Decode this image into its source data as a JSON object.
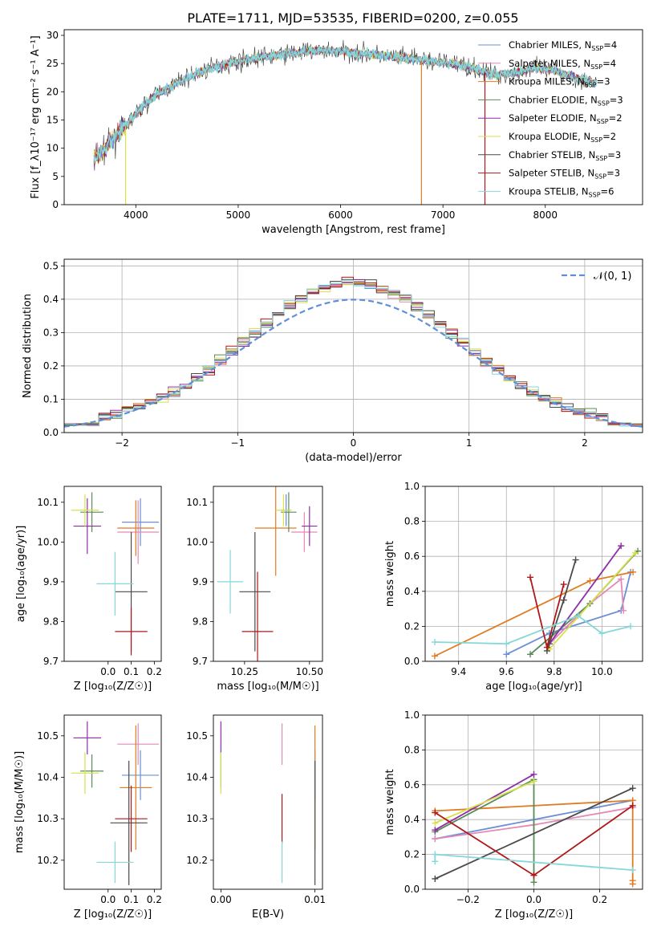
{
  "figure": {
    "title": "PLATE=1711, MJD=53535, FIBERID=0200, z=0.055"
  },
  "colors": {
    "Chabrier MILES": "#6a8fd6",
    "Salpeter MILES": "#e488b6",
    "Kroupa MILES": "#e07b22",
    "Chabrier ELODIE": "#5a8a5a",
    "Salpeter ELODIE": "#8e2ea6",
    "Kroupa ELODIE": "#d7e04a",
    "Chabrier STELIB": "#4a4a4a",
    "Salpeter STELIB": "#b01818",
    "Kroupa STELIB": "#86d8d8"
  },
  "chart_data": [
    {
      "id": "spectrum",
      "type": "line",
      "xlabel": "wavelength [Angstrom, rest frame]",
      "ylabel": "Flux [f_λ10⁻¹⁷ erg cm⁻² s⁻¹ A⁻¹]",
      "xlim": [
        3300,
        8950
      ],
      "ylim": [
        0,
        31
      ],
      "xticks": [
        4000,
        5000,
        6000,
        7000,
        8000
      ],
      "yticks": [
        0,
        5,
        10,
        15,
        20,
        25,
        30
      ],
      "grid": false,
      "legend_position": "right",
      "legend": [
        {
          "name": "Chabrier MILES",
          "nssp": "4"
        },
        {
          "name": "Salpeter MILES",
          "nssp": "4"
        },
        {
          "name": "Kroupa MILES",
          "nssp": "3"
        },
        {
          "name": "Chabrier ELODIE",
          "nssp": "3"
        },
        {
          "name": "Salpeter ELODIE",
          "nssp": "2"
        },
        {
          "name": "Kroupa ELODIE",
          "nssp": "2"
        },
        {
          "name": "Chabrier STELIB",
          "nssp": "3"
        },
        {
          "name": "Salpeter STELIB",
          "nssp": "3"
        },
        {
          "name": "Kroupa STELIB",
          "nssp": "6"
        }
      ],
      "continuum": {
        "x": [
          3590,
          3700,
          3800,
          3900,
          4000,
          4100,
          4200,
          4300,
          4400,
          4500,
          4700,
          4900,
          5100,
          5300,
          5500,
          5700,
          5900,
          6100,
          6300,
          6500,
          6700,
          6900,
          7100,
          7300,
          7500,
          7700,
          7900,
          8100,
          8300,
          8500
        ],
        "y": [
          8,
          10,
          12,
          14,
          16,
          18,
          19.5,
          20.5,
          21.5,
          22.5,
          24,
          25,
          25.8,
          26.3,
          26.8,
          27.2,
          27.3,
          27.0,
          26.6,
          26.2,
          25.8,
          25.4,
          25.0,
          24.2,
          23.0,
          23.4,
          24.2,
          23.6,
          22.5,
          21.5
        ]
      },
      "spikes": [
        {
          "x": 3900,
          "y": 0
        },
        {
          "x": 6790,
          "y": 0
        },
        {
          "x": 7410,
          "y": 0
        }
      ]
    },
    {
      "id": "residuals",
      "type": "bar",
      "xlabel": "(data-model)/error",
      "ylabel": "Normed distribution",
      "xlim": [
        -2.5,
        2.5
      ],
      "ylim": [
        0,
        0.52
      ],
      "xticks": [
        -2,
        -1,
        0,
        1,
        2
      ],
      "yticks": [
        0.0,
        0.1,
        0.2,
        0.3,
        0.4,
        0.5
      ],
      "grid": true,
      "legend_position": "top-right",
      "legend": [
        {
          "name": "𝒩(0, 1)"
        }
      ],
      "bin_edges_range": [
        -2.5,
        2.5
      ],
      "bins": 50,
      "histogram_peak": 0.43
    },
    {
      "id": "age-vs-z",
      "type": "scatter",
      "xlabel": "Z [log₁₀(Z/Z☉)]",
      "ylabel": "age  [log₁₀(age/yr)]",
      "xlim": [
        -0.19,
        0.23
      ],
      "ylim": [
        9.7,
        10.14
      ],
      "xticks": [
        0.0,
        0.1,
        0.2
      ],
      "xticklabels": [
        "0.0",
        "0.1",
        "0.2"
      ],
      "yticks": [
        9.7,
        9.8,
        9.9,
        10.0,
        10.1
      ],
      "grid": false,
      "points": [
        {
          "series": "Chabrier MILES",
          "x": 0.14,
          "y": 10.05,
          "xerr": 0.08,
          "yerr": 0.06
        },
        {
          "series": "Salpeter MILES",
          "x": 0.13,
          "y": 10.025,
          "xerr": 0.09,
          "yerr": 0.08
        },
        {
          "series": "Kroupa MILES",
          "x": 0.12,
          "y": 10.035,
          "xerr": 0.08,
          "yerr": 0.07
        },
        {
          "series": "Chabrier ELODIE",
          "x": -0.07,
          "y": 10.075,
          "xerr": 0.05,
          "yerr": 0.05
        },
        {
          "series": "Salpeter ELODIE",
          "x": -0.09,
          "y": 10.04,
          "xerr": 0.06,
          "yerr": 0.07
        },
        {
          "series": "Kroupa ELODIE",
          "x": -0.1,
          "y": 10.08,
          "xerr": 0.06,
          "yerr": 0.04
        },
        {
          "series": "Chabrier STELIB",
          "x": 0.1,
          "y": 9.875,
          "xerr": 0.07,
          "yerr": 0.15
        },
        {
          "series": "Salpeter STELIB",
          "x": 0.1,
          "y": 9.775,
          "xerr": 0.07,
          "yerr": 0.06
        },
        {
          "series": "Kroupa STELIB",
          "x": 0.03,
          "y": 9.895,
          "xerr": 0.08,
          "yerr": 0.08
        }
      ]
    },
    {
      "id": "age-vs-mass",
      "type": "scatter",
      "xlabel": "mass [log₁₀(M/M☉)]",
      "ylabel": "",
      "xlim": [
        10.13,
        10.55
      ],
      "ylim": [
        9.7,
        10.14
      ],
      "xticks": [
        10.25,
        10.5
      ],
      "xticklabels": [
        "10.25",
        "10.50"
      ],
      "yticks": [
        9.7,
        9.8,
        9.9,
        10.0,
        10.1
      ],
      "grid": false,
      "points": [
        {
          "series": "Chabrier MILES",
          "x": 10.41,
          "y": 10.08,
          "xerr": 0.02,
          "yerr": 0.04
        },
        {
          "series": "Salpeter MILES",
          "x": 10.48,
          "y": 10.025,
          "xerr": 0.05,
          "yerr": 0.05
        },
        {
          "series": "Kroupa MILES",
          "x": 10.37,
          "y": 10.035,
          "xerr": 0.08,
          "yerr": 0.12
        },
        {
          "series": "Chabrier ELODIE",
          "x": 10.42,
          "y": 10.075,
          "xerr": 0.03,
          "yerr": 0.05
        },
        {
          "series": "Salpeter ELODIE",
          "x": 10.5,
          "y": 10.04,
          "xerr": 0.03,
          "yerr": 0.05
        },
        {
          "series": "Kroupa ELODIE",
          "x": 10.4,
          "y": 10.08,
          "xerr": 0.03,
          "yerr": 0.04
        },
        {
          "series": "Chabrier STELIB",
          "x": 10.29,
          "y": 9.875,
          "xerr": 0.06,
          "yerr": 0.15
        },
        {
          "series": "Salpeter STELIB",
          "x": 10.3,
          "y": 9.775,
          "xerr": 0.06,
          "yerr": 0.15
        },
        {
          "series": "Kroupa STELIB",
          "x": 10.195,
          "y": 9.9,
          "xerr": 0.05,
          "yerr": 0.08
        }
      ]
    },
    {
      "id": "weight-vs-age",
      "type": "line",
      "xlabel": "age  [log₁₀(age/yr)]",
      "ylabel": "mass weight",
      "xlim": [
        9.26,
        10.17
      ],
      "ylim": [
        0,
        1
      ],
      "xticks": [
        9.4,
        9.6,
        9.8,
        10.0
      ],
      "xticklabels": [
        "9.4",
        "9.6",
        "9.8",
        "10.0"
      ],
      "yticks": [
        0.0,
        0.2,
        0.4,
        0.6,
        0.8,
        1.0
      ],
      "grid": true,
      "series": [
        {
          "name": "Chabrier MILES",
          "x": [
            9.6,
            9.78,
            10.08,
            10.12
          ],
          "y": [
            0.04,
            0.16,
            0.29,
            0.51
          ]
        },
        {
          "name": "Salpeter MILES",
          "x": [
            9.78,
            9.95,
            10.08,
            10.09
          ],
          "y": [
            0.1,
            0.33,
            0.47,
            0.29
          ]
        },
        {
          "name": "Kroupa MILES",
          "x": [
            9.3,
            9.95,
            10.13
          ],
          "y": [
            0.03,
            0.46,
            0.51
          ]
        },
        {
          "name": "Chabrier ELODIE",
          "x": [
            9.7,
            9.95,
            10.15
          ],
          "y": [
            0.04,
            0.33,
            0.63
          ]
        },
        {
          "name": "Salpeter ELODIE",
          "x": [
            9.78,
            10.08
          ],
          "y": [
            0.1,
            0.66
          ]
        },
        {
          "name": "Kroupa ELODIE",
          "x": [
            9.78,
            10.14
          ],
          "y": [
            0.07,
            0.62
          ]
        },
        {
          "name": "Chabrier STELIB",
          "x": [
            9.77,
            9.84,
            9.89
          ],
          "y": [
            0.06,
            0.35,
            0.58
          ]
        },
        {
          "name": "Salpeter STELIB",
          "x": [
            9.7,
            9.77,
            9.84
          ],
          "y": [
            0.48,
            0.08,
            0.44
          ]
        },
        {
          "name": "Kroupa STELIB",
          "x": [
            9.3,
            9.6,
            9.9,
            10.0,
            10.12
          ],
          "y": [
            0.11,
            0.1,
            0.26,
            0.16,
            0.2
          ]
        }
      ]
    },
    {
      "id": "mass-vs-z",
      "type": "scatter",
      "xlabel": "Z [log₁₀(Z/Z☉)]",
      "ylabel": "mass [log₁₀(M/M☉)]",
      "xlim": [
        -0.19,
        0.23
      ],
      "ylim": [
        10.13,
        10.55
      ],
      "xticks": [
        0.0,
        0.1,
        0.2
      ],
      "xticklabels": [
        "0.0",
        "0.1",
        "0.2"
      ],
      "yticks": [
        10.2,
        10.3,
        10.4,
        10.5
      ],
      "grid": false,
      "points": [
        {
          "series": "Chabrier MILES",
          "x": 0.14,
          "y": 10.405,
          "xerr": 0.08,
          "yerr": 0.06
        },
        {
          "series": "Salpeter MILES",
          "x": 0.13,
          "y": 10.48,
          "xerr": 0.09,
          "yerr": 0.05
        },
        {
          "series": "Kroupa MILES",
          "x": 0.12,
          "y": 10.375,
          "xerr": 0.07,
          "yerr": 0.15
        },
        {
          "series": "Chabrier ELODIE",
          "x": -0.07,
          "y": 10.415,
          "xerr": 0.05,
          "yerr": 0.04
        },
        {
          "series": "Salpeter ELODIE",
          "x": -0.09,
          "y": 10.495,
          "xerr": 0.06,
          "yerr": 0.04
        },
        {
          "series": "Kroupa ELODIE",
          "x": -0.1,
          "y": 10.41,
          "xerr": 0.06,
          "yerr": 0.05
        },
        {
          "series": "Chabrier STELIB",
          "x": 0.09,
          "y": 10.29,
          "xerr": 0.08,
          "yerr": 0.15
        },
        {
          "series": "Salpeter STELIB",
          "x": 0.1,
          "y": 10.3,
          "xerr": 0.07,
          "yerr": 0.08
        },
        {
          "series": "Kroupa STELIB",
          "x": 0.03,
          "y": 10.195,
          "xerr": 0.08,
          "yerr": 0.05
        }
      ]
    },
    {
      "id": "mass-vs-ebv",
      "type": "scatter",
      "xlabel": "E(B-V)",
      "ylabel": "",
      "xlim": [
        -0.0008,
        0.0108
      ],
      "ylim": [
        10.13,
        10.55
      ],
      "xticks": [
        0.0,
        0.01
      ],
      "xticklabels": [
        "0.00",
        "0.01"
      ],
      "yticks": [
        10.2,
        10.3,
        10.4,
        10.5
      ],
      "grid": false,
      "points": [
        {
          "series": "Chabrier MILES",
          "x": 0.01,
          "y": 10.405,
          "xerr": 0,
          "yerr": 0.06
        },
        {
          "series": "Salpeter MILES",
          "x": 0.0065,
          "y": 10.48,
          "xerr": 0,
          "yerr": 0.05
        },
        {
          "series": "Kroupa MILES",
          "x": 0.01,
          "y": 10.375,
          "xerr": 0,
          "yerr": 0.15
        },
        {
          "series": "Chabrier ELODIE",
          "x": 0.0,
          "y": 10.415,
          "xerr": 0,
          "yerr": 0.04
        },
        {
          "series": "Salpeter ELODIE",
          "x": 0.0,
          "y": 10.495,
          "xerr": 0,
          "yerr": 0.04
        },
        {
          "series": "Kroupa ELODIE",
          "x": 0.0,
          "y": 10.41,
          "xerr": 0,
          "yerr": 0.05
        },
        {
          "series": "Chabrier STELIB",
          "x": 0.01,
          "y": 10.29,
          "xerr": 0,
          "yerr": 0.15
        },
        {
          "series": "Salpeter STELIB",
          "x": 0.0065,
          "y": 10.3,
          "xerr": 0,
          "yerr": 0.06
        },
        {
          "series": "Kroupa STELIB",
          "x": 0.0065,
          "y": 10.195,
          "xerr": 0,
          "yerr": 0.05
        }
      ]
    },
    {
      "id": "weight-vs-z",
      "type": "line",
      "xlabel": "Z [log₁₀(Z/Z☉)]",
      "ylabel": "mass weight",
      "xlim": [
        -0.33,
        0.33
      ],
      "ylim": [
        0,
        1
      ],
      "xticks": [
        -0.2,
        0.0,
        0.2
      ],
      "xticklabels": [
        "−0.2",
        "0.0",
        "0.2"
      ],
      "yticks": [
        0.0,
        0.2,
        0.4,
        0.6,
        0.8,
        1.0
      ],
      "grid": true,
      "series": [
        {
          "name": "Chabrier MILES",
          "x": [
            -0.3,
            0.0,
            0.3
          ],
          "y": [
            0.29,
            0.4,
            0.51
          ]
        },
        {
          "name": "Salpeter MILES",
          "x": [
            -0.3,
            0.0,
            0.3
          ],
          "y": [
            0.29,
            0.37,
            0.47
          ]
        },
        {
          "name": "Kroupa MILES",
          "x": [
            -0.3,
            0.3,
            0.3,
            0.3
          ],
          "y": [
            0.45,
            0.51,
            0.03,
            0.05
          ]
        },
        {
          "name": "Chabrier ELODIE",
          "x": [
            -0.3,
            0.0,
            0.0
          ],
          "y": [
            0.33,
            0.63,
            0.04
          ]
        },
        {
          "name": "Salpeter ELODIE",
          "x": [
            -0.3,
            0.0
          ],
          "y": [
            0.34,
            0.66
          ]
        },
        {
          "name": "Kroupa ELODIE",
          "x": [
            -0.3,
            0.0
          ],
          "y": [
            0.38,
            0.62
          ]
        },
        {
          "name": "Chabrier STELIB",
          "x": [
            -0.3,
            0.3
          ],
          "y": [
            0.06,
            0.58
          ]
        },
        {
          "name": "Salpeter STELIB",
          "x": [
            -0.3,
            0.0,
            0.3
          ],
          "y": [
            0.44,
            0.08,
            0.48
          ]
        },
        {
          "name": "Kroupa STELIB",
          "x": [
            -0.3,
            -0.3,
            0.3
          ],
          "y": [
            0.16,
            0.2,
            0.11
          ]
        }
      ]
    }
  ]
}
